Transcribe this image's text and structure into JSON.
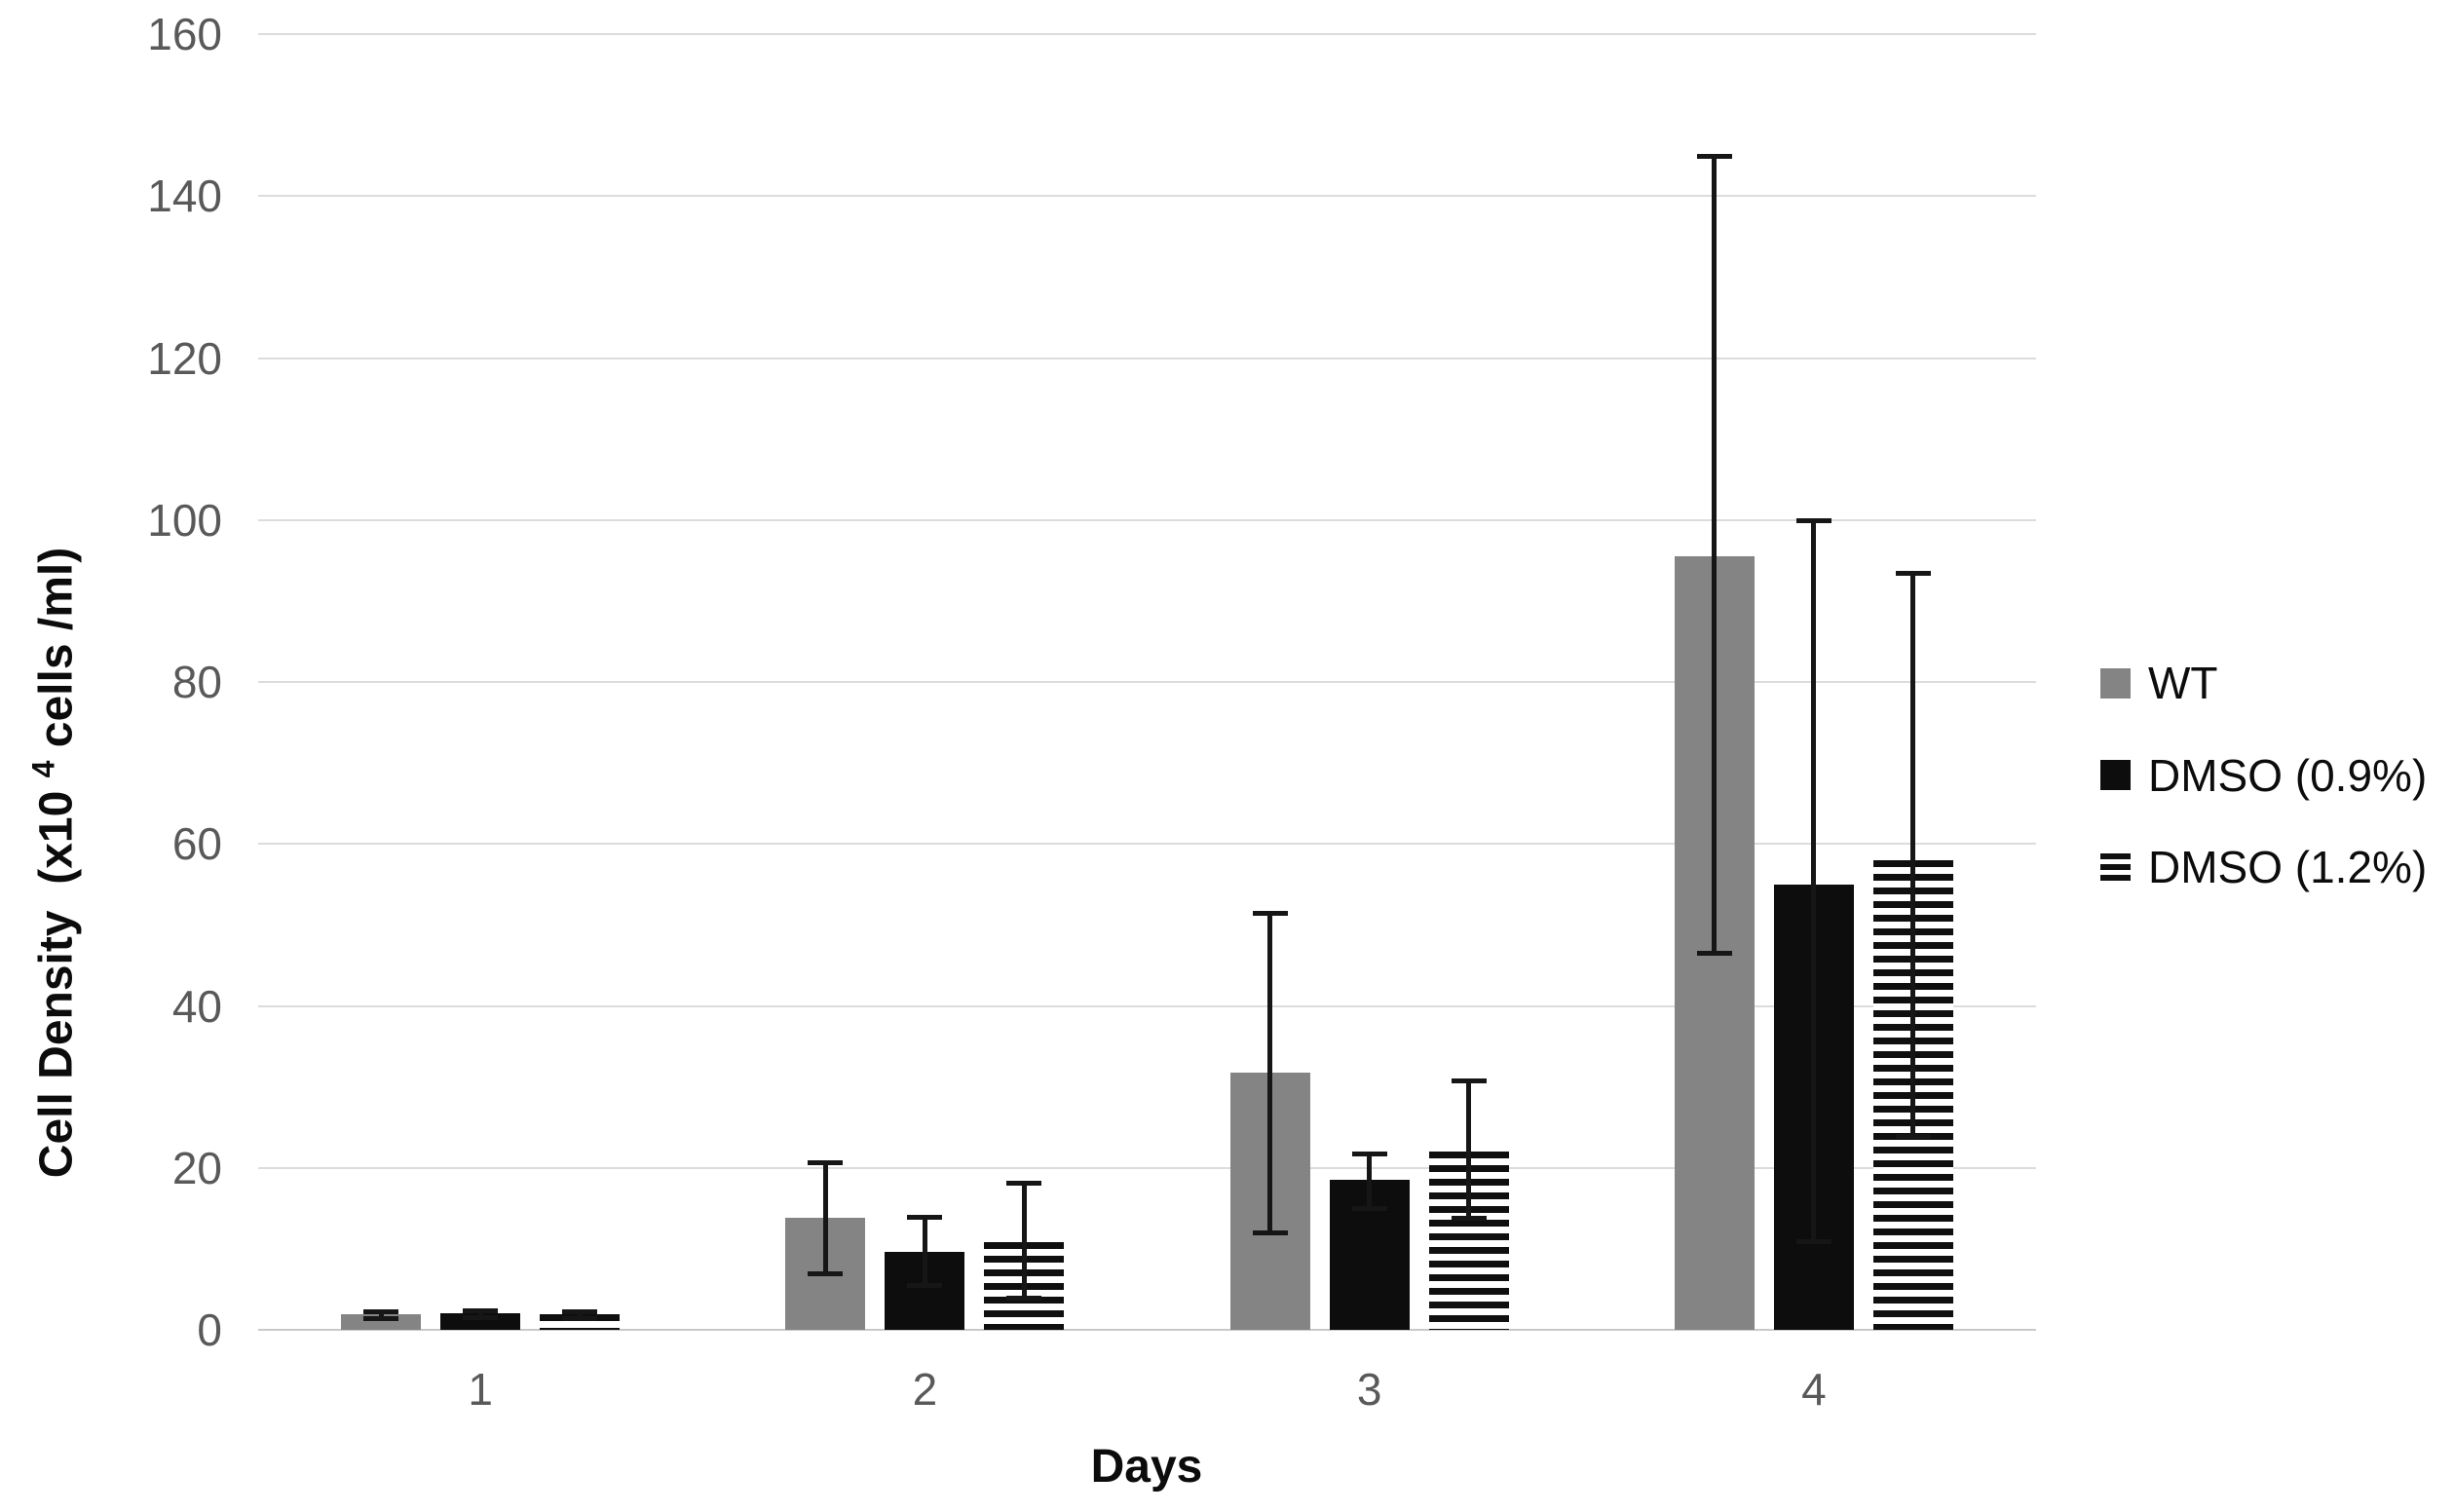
{
  "chart": {
    "xlabel": "Days",
    "ylabel_prefix": "Cell Density  (x10 ",
    "ylabel_sup": "4",
    "ylabel_suffix": " cells /ml)"
  },
  "chart_data": {
    "type": "bar",
    "title": "",
    "xlabel": "Days",
    "ylabel": "Cell Density (x10^4 cells /ml)",
    "categories": [
      "1",
      "2",
      "3",
      "4"
    ],
    "series": [
      {
        "name": "WT",
        "style": "solid-gray",
        "color": "#848484",
        "values": [
          1.9,
          13.8,
          31.7,
          95.5
        ],
        "error_low": [
          1.5,
          7.0,
          12.0,
          46.5
        ],
        "error_high": [
          2.3,
          20.7,
          51.5,
          145.0
        ]
      },
      {
        "name": "DMSO (0.9%)",
        "style": "solid-black",
        "color": "#0d0d0d",
        "values": [
          2.0,
          9.6,
          18.5,
          55.0
        ],
        "error_low": [
          1.6,
          5.5,
          15.0,
          11.0
        ],
        "error_high": [
          2.4,
          14.0,
          21.8,
          100.0
        ]
      },
      {
        "name": "DMSO (1.2%)",
        "style": "hstripes",
        "color": "#0f0f0f",
        "values": [
          1.9,
          10.8,
          22.0,
          58.0
        ],
        "error_low": [
          1.5,
          4.0,
          13.8,
          24.0
        ],
        "error_high": [
          2.3,
          18.2,
          30.8,
          93.5
        ]
      }
    ],
    "ylim": [
      0,
      160
    ],
    "yticks": [
      0,
      20,
      40,
      60,
      80,
      100,
      120,
      140,
      160
    ],
    "grid": true,
    "legend_position": "right",
    "error_bars": true
  }
}
